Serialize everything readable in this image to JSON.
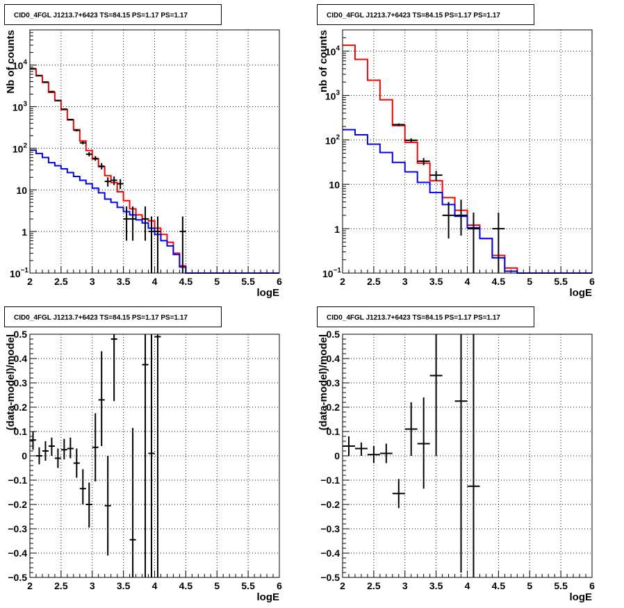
{
  "chart_data": [
    {
      "panel": "top-left",
      "type": "step-histogram",
      "title": "CID0_4FGL J1213.7+6423 TS=84.15 PS=1.17 PS=1.17",
      "xlabel": "logE",
      "ylabel": "Nb of counts",
      "xlim": [
        2,
        6
      ],
      "ylim": [
        0.1,
        70000
      ],
      "yscale": "log",
      "grid": true,
      "x_ticks": [
        "2",
        "2.5",
        "3",
        "3.5",
        "4",
        "4.5",
        "5",
        "5.5",
        "6"
      ],
      "y_ticks": [
        {
          "v": 0.1,
          "label": "10",
          "sup": "−1"
        },
        {
          "v": 1,
          "label": "1",
          "sup": ""
        },
        {
          "v": 10,
          "label": "10",
          "sup": ""
        },
        {
          "v": 100,
          "label": "10",
          "sup": "2"
        },
        {
          "v": 1000,
          "label": "10",
          "sup": "3"
        },
        {
          "v": 10000,
          "label": "10",
          "sup": "4"
        }
      ],
      "bin_edges": [
        2.0,
        2.1,
        2.2,
        2.3,
        2.4,
        2.5,
        2.6,
        2.7,
        2.8,
        2.9,
        3.0,
        3.1,
        3.2,
        3.3,
        3.4,
        3.5,
        3.6,
        3.7,
        3.8,
        3.9,
        4.0,
        4.1,
        4.2,
        4.3,
        4.4,
        4.5,
        4.6,
        4.7,
        4.8,
        4.9,
        5.0,
        5.1,
        5.2,
        5.3,
        5.4,
        5.5,
        5.6,
        5.7,
        5.8,
        5.9,
        6.0
      ],
      "series": [
        {
          "color": "#ff0000",
          "values": [
            8000,
            5500,
            3800,
            2200,
            1400,
            850,
            480,
            280,
            150,
            88,
            55,
            36,
            22,
            15,
            9,
            5.5,
            3.5,
            2.5,
            2.0,
            1.8,
            1.2,
            0.85,
            0.55,
            0.3,
            0.15,
            0.1,
            0.1,
            0.1,
            0.1,
            0.1,
            0.1,
            0.1,
            0.1,
            0.1,
            0.1,
            0.1,
            0.1,
            0.1,
            0.1,
            0.1
          ]
        },
        {
          "color": "#0000ff",
          "values": [
            90,
            75,
            60,
            45,
            38,
            32,
            26,
            21,
            17,
            14,
            11,
            8.5,
            6,
            5,
            3.8,
            3,
            2.5,
            1.9,
            1.6,
            1.2,
            0.85,
            0.6,
            0.45,
            0.28,
            0.14,
            0.1,
            0.1,
            0.1,
            0.1,
            0.1,
            0.1,
            0.1,
            0.1,
            0.1,
            0.1,
            0.1,
            0.1,
            0.1,
            0.1,
            0.1
          ]
        }
      ],
      "points": [
        {
          "x": 2.05,
          "y": 8200,
          "xerr": 0.05,
          "ylo": 8030,
          "yhi": 8380
        },
        {
          "x": 2.15,
          "y": 5600,
          "xerr": 0.05,
          "ylo": 5450,
          "yhi": 5750
        },
        {
          "x": 2.25,
          "y": 3900,
          "xerr": 0.05,
          "ylo": 3780,
          "yhi": 4020
        },
        {
          "x": 2.35,
          "y": 2300,
          "xerr": 0.05,
          "ylo": 2200,
          "yhi": 2400
        },
        {
          "x": 2.45,
          "y": 1400,
          "xerr": 0.05,
          "ylo": 1330,
          "yhi": 1470
        },
        {
          "x": 2.55,
          "y": 870,
          "xerr": 0.05,
          "ylo": 840,
          "yhi": 900
        },
        {
          "x": 2.65,
          "y": 490,
          "xerr": 0.05,
          "ylo": 470,
          "yhi": 510
        },
        {
          "x": 2.75,
          "y": 270,
          "xerr": 0.05,
          "ylo": 254,
          "yhi": 286
        },
        {
          "x": 2.85,
          "y": 135,
          "xerr": 0.05,
          "ylo": 124,
          "yhi": 147
        },
        {
          "x": 2.95,
          "y": 72,
          "xerr": 0.05,
          "ylo": 64,
          "yhi": 81
        },
        {
          "x": 3.05,
          "y": 57,
          "xerr": 0.05,
          "ylo": 50,
          "yhi": 65
        },
        {
          "x": 3.15,
          "y": 37,
          "xerr": 0.05,
          "ylo": 31,
          "yhi": 44
        },
        {
          "x": 3.25,
          "y": 16,
          "xerr": 0.05,
          "ylo": 12,
          "yhi": 20
        },
        {
          "x": 3.35,
          "y": 17,
          "xerr": 0.05,
          "ylo": 13,
          "yhi": 21
        },
        {
          "x": 3.45,
          "y": 14,
          "xerr": 0.05,
          "ylo": 10.5,
          "yhi": 18
        },
        {
          "x": 3.55,
          "y": 2,
          "xerr": 0.05,
          "ylo": 0.6,
          "yhi": 4
        },
        {
          "x": 3.65,
          "y": 2,
          "xerr": 0.05,
          "ylo": 0.6,
          "yhi": 4
        },
        {
          "x": 3.85,
          "y": 2,
          "xerr": 0.05,
          "ylo": 0.6,
          "yhi": 4
        },
        {
          "x": 3.95,
          "y": 1,
          "xerr": 0.05,
          "ylo": 0.1,
          "yhi": 2.3
        },
        {
          "x": 4.05,
          "y": 1,
          "xerr": 0.05,
          "ylo": 0.1,
          "yhi": 2.3
        },
        {
          "x": 4.45,
          "y": 1,
          "xerr": 0.05,
          "ylo": 0.1,
          "yhi": 2.3
        }
      ]
    },
    {
      "panel": "top-right",
      "type": "step-histogram",
      "title": "CID0_4FGL J1213.7+6423 TS=84.15 PS=1.17 PS=1.17",
      "xlabel": "logE",
      "ylabel": "nb of counts",
      "xlim": [
        2,
        6
      ],
      "ylim": [
        0.1,
        30000
      ],
      "yscale": "log",
      "grid": true,
      "x_ticks": [
        "2",
        "2.5",
        "3",
        "3.5",
        "4",
        "4.5",
        "5",
        "5.5",
        "6"
      ],
      "y_ticks": [
        {
          "v": 0.1,
          "label": "10",
          "sup": "−1"
        },
        {
          "v": 1,
          "label": "1",
          "sup": ""
        },
        {
          "v": 10,
          "label": "10",
          "sup": ""
        },
        {
          "v": 100,
          "label": "10",
          "sup": "2"
        },
        {
          "v": 1000,
          "label": "10",
          "sup": "3"
        },
        {
          "v": 10000,
          "label": "10",
          "sup": "4"
        }
      ],
      "bin_edges": [
        2.0,
        2.2,
        2.4,
        2.6,
        2.8,
        3.0,
        3.2,
        3.4,
        3.6,
        3.8,
        4.0,
        4.2,
        4.4,
        4.6,
        4.8,
        5.0,
        5.2,
        5.4,
        5.6,
        5.8,
        6.0
      ],
      "series": [
        {
          "color": "#ff0000",
          "values": [
            13500,
            6500,
            2200,
            800,
            210,
            88,
            30,
            12,
            5,
            2.6,
            1.2,
            0.6,
            0.25,
            0.13,
            0.1,
            0.1,
            0.1,
            0.1,
            0.1,
            0.1
          ]
        },
        {
          "color": "#0000ff",
          "values": [
            170,
            130,
            80,
            52,
            31,
            19,
            11,
            6.5,
            3.5,
            1.9,
            1.05,
            0.6,
            0.22,
            0.11,
            0.1,
            0.1,
            0.1,
            0.1,
            0.1,
            0.1
          ]
        }
      ],
      "points": [
        {
          "x": 2.9,
          "y": 220,
          "xerr": 0.1,
          "ylo": 205,
          "yhi": 235
        },
        {
          "x": 3.1,
          "y": 98,
          "xerr": 0.1,
          "ylo": 88,
          "yhi": 108
        },
        {
          "x": 3.3,
          "y": 33,
          "xerr": 0.1,
          "ylo": 27,
          "yhi": 39
        },
        {
          "x": 3.5,
          "y": 16,
          "xerr": 0.1,
          "ylo": 12,
          "yhi": 20
        },
        {
          "x": 3.7,
          "y": 2,
          "xerr": 0.1,
          "ylo": 0.6,
          "yhi": 4
        },
        {
          "x": 3.9,
          "y": 2,
          "xerr": 0.1,
          "ylo": 0.7,
          "yhi": 4.5
        },
        {
          "x": 4.1,
          "y": 1,
          "xerr": 0.1,
          "ylo": 0.1,
          "yhi": 2.3
        },
        {
          "x": 4.5,
          "y": 1,
          "xerr": 0.1,
          "ylo": 0.1,
          "yhi": 2.3
        }
      ]
    },
    {
      "panel": "bottom-left",
      "type": "scatter",
      "title": "CID0_4FGL J1213.7+6423 TS=84.15 PS=1.17 PS=1.17",
      "xlabel": "logE",
      "ylabel": "(data-model)/model",
      "xlim": [
        2,
        6
      ],
      "ylim": [
        -0.5,
        0.5
      ],
      "grid": true,
      "x_ticks": [
        "2",
        "2.5",
        "3",
        "3.5",
        "4",
        "4.5",
        "5",
        "5.5",
        "6"
      ],
      "y_ticks": [
        "−0.5",
        "−0.4",
        "−0.3",
        "−0.2",
        "−0.1",
        "0",
        "0.1",
        "0.2",
        "0.3",
        "0.4",
        "0.5"
      ],
      "points": [
        {
          "x": 2.05,
          "y": 0.065,
          "xerr": 0.05,
          "ylo": 0.025,
          "yhi": 0.1
        },
        {
          "x": 2.15,
          "y": 0.0,
          "xerr": 0.05,
          "ylo": -0.035,
          "yhi": 0.035
        },
        {
          "x": 2.25,
          "y": 0.02,
          "xerr": 0.05,
          "ylo": -0.02,
          "yhi": 0.06
        },
        {
          "x": 2.35,
          "y": 0.04,
          "xerr": 0.05,
          "ylo": 0.0,
          "yhi": 0.075
        },
        {
          "x": 2.45,
          "y": -0.01,
          "xerr": 0.05,
          "ylo": -0.05,
          "yhi": 0.03
        },
        {
          "x": 2.55,
          "y": 0.025,
          "xerr": 0.05,
          "ylo": -0.015,
          "yhi": 0.07
        },
        {
          "x": 2.65,
          "y": 0.03,
          "xerr": 0.05,
          "ylo": -0.01,
          "yhi": 0.075
        },
        {
          "x": 2.75,
          "y": -0.03,
          "xerr": 0.05,
          "ylo": -0.09,
          "yhi": 0.03
        },
        {
          "x": 2.85,
          "y": -0.135,
          "xerr": 0.05,
          "ylo": -0.2,
          "yhi": -0.055
        },
        {
          "x": 2.95,
          "y": -0.2,
          "xerr": 0.05,
          "ylo": -0.295,
          "yhi": -0.11
        },
        {
          "x": 3.05,
          "y": 0.035,
          "xerr": 0.05,
          "ylo": -0.105,
          "yhi": 0.175
        },
        {
          "x": 3.15,
          "y": 0.23,
          "xerr": 0.05,
          "ylo": 0.04,
          "yhi": 0.43
        },
        {
          "x": 3.25,
          "y": -0.205,
          "xerr": 0.05,
          "ylo": -0.41,
          "yhi": 0.0
        },
        {
          "x": 3.35,
          "y": 0.48,
          "xerr": 0.05,
          "ylo": 0.225,
          "yhi": 0.5
        },
        {
          "x": 3.65,
          "y": -0.345,
          "xerr": 0.05,
          "ylo": -0.5,
          "yhi": 0.115
        },
        {
          "x": 3.85,
          "y": 0.375,
          "xerr": 0.05,
          "ylo": -0.5,
          "yhi": 0.5
        },
        {
          "x": 3.95,
          "y": 0.01,
          "xerr": 0.05,
          "ylo": -0.5,
          "yhi": 0.5
        },
        {
          "x": 4.05,
          "y": 0.49,
          "xerr": 0.05,
          "ylo": -0.5,
          "yhi": 0.5
        }
      ]
    },
    {
      "panel": "bottom-right",
      "type": "scatter",
      "title": "CID0_4FGL J1213.7+6423 TS=84.15 PS=1.17 PS=1.17",
      "xlabel": "logE",
      "ylabel": "(data-model)/model",
      "xlim": [
        2,
        6
      ],
      "ylim": [
        -0.5,
        0.5
      ],
      "grid": true,
      "x_ticks": [
        "2",
        "2.5",
        "3",
        "3.5",
        "4",
        "4.5",
        "5",
        "5.5",
        "6"
      ],
      "y_ticks": [
        "−0.5",
        "−0.4",
        "−0.3",
        "−0.2",
        "−0.1",
        "0",
        "0.1",
        "0.2",
        "0.3",
        "0.4",
        "0.5"
      ],
      "points": [
        {
          "x": 2.1,
          "y": 0.04,
          "xerr": 0.1,
          "ylo": 0.0,
          "yhi": 0.08
        },
        {
          "x": 2.3,
          "y": 0.03,
          "xerr": 0.1,
          "ylo": 0.0,
          "yhi": 0.055
        },
        {
          "x": 2.5,
          "y": 0.005,
          "xerr": 0.1,
          "ylo": -0.03,
          "yhi": 0.04
        },
        {
          "x": 2.7,
          "y": 0.01,
          "xerr": 0.1,
          "ylo": -0.03,
          "yhi": 0.05
        },
        {
          "x": 2.9,
          "y": -0.155,
          "xerr": 0.1,
          "ylo": -0.215,
          "yhi": -0.095
        },
        {
          "x": 3.1,
          "y": 0.11,
          "xerr": 0.1,
          "ylo": 0.0,
          "yhi": 0.22
        },
        {
          "x": 3.3,
          "y": 0.05,
          "xerr": 0.1,
          "ylo": -0.135,
          "yhi": 0.24
        },
        {
          "x": 3.5,
          "y": 0.33,
          "xerr": 0.1,
          "ylo": 0.0,
          "yhi": 0.5
        },
        {
          "x": 3.9,
          "y": 0.225,
          "xerr": 0.1,
          "ylo": -0.48,
          "yhi": 0.5
        },
        {
          "x": 4.1,
          "y": -0.125,
          "xerr": 0.1,
          "ylo": -0.5,
          "yhi": 0.5
        }
      ]
    }
  ]
}
